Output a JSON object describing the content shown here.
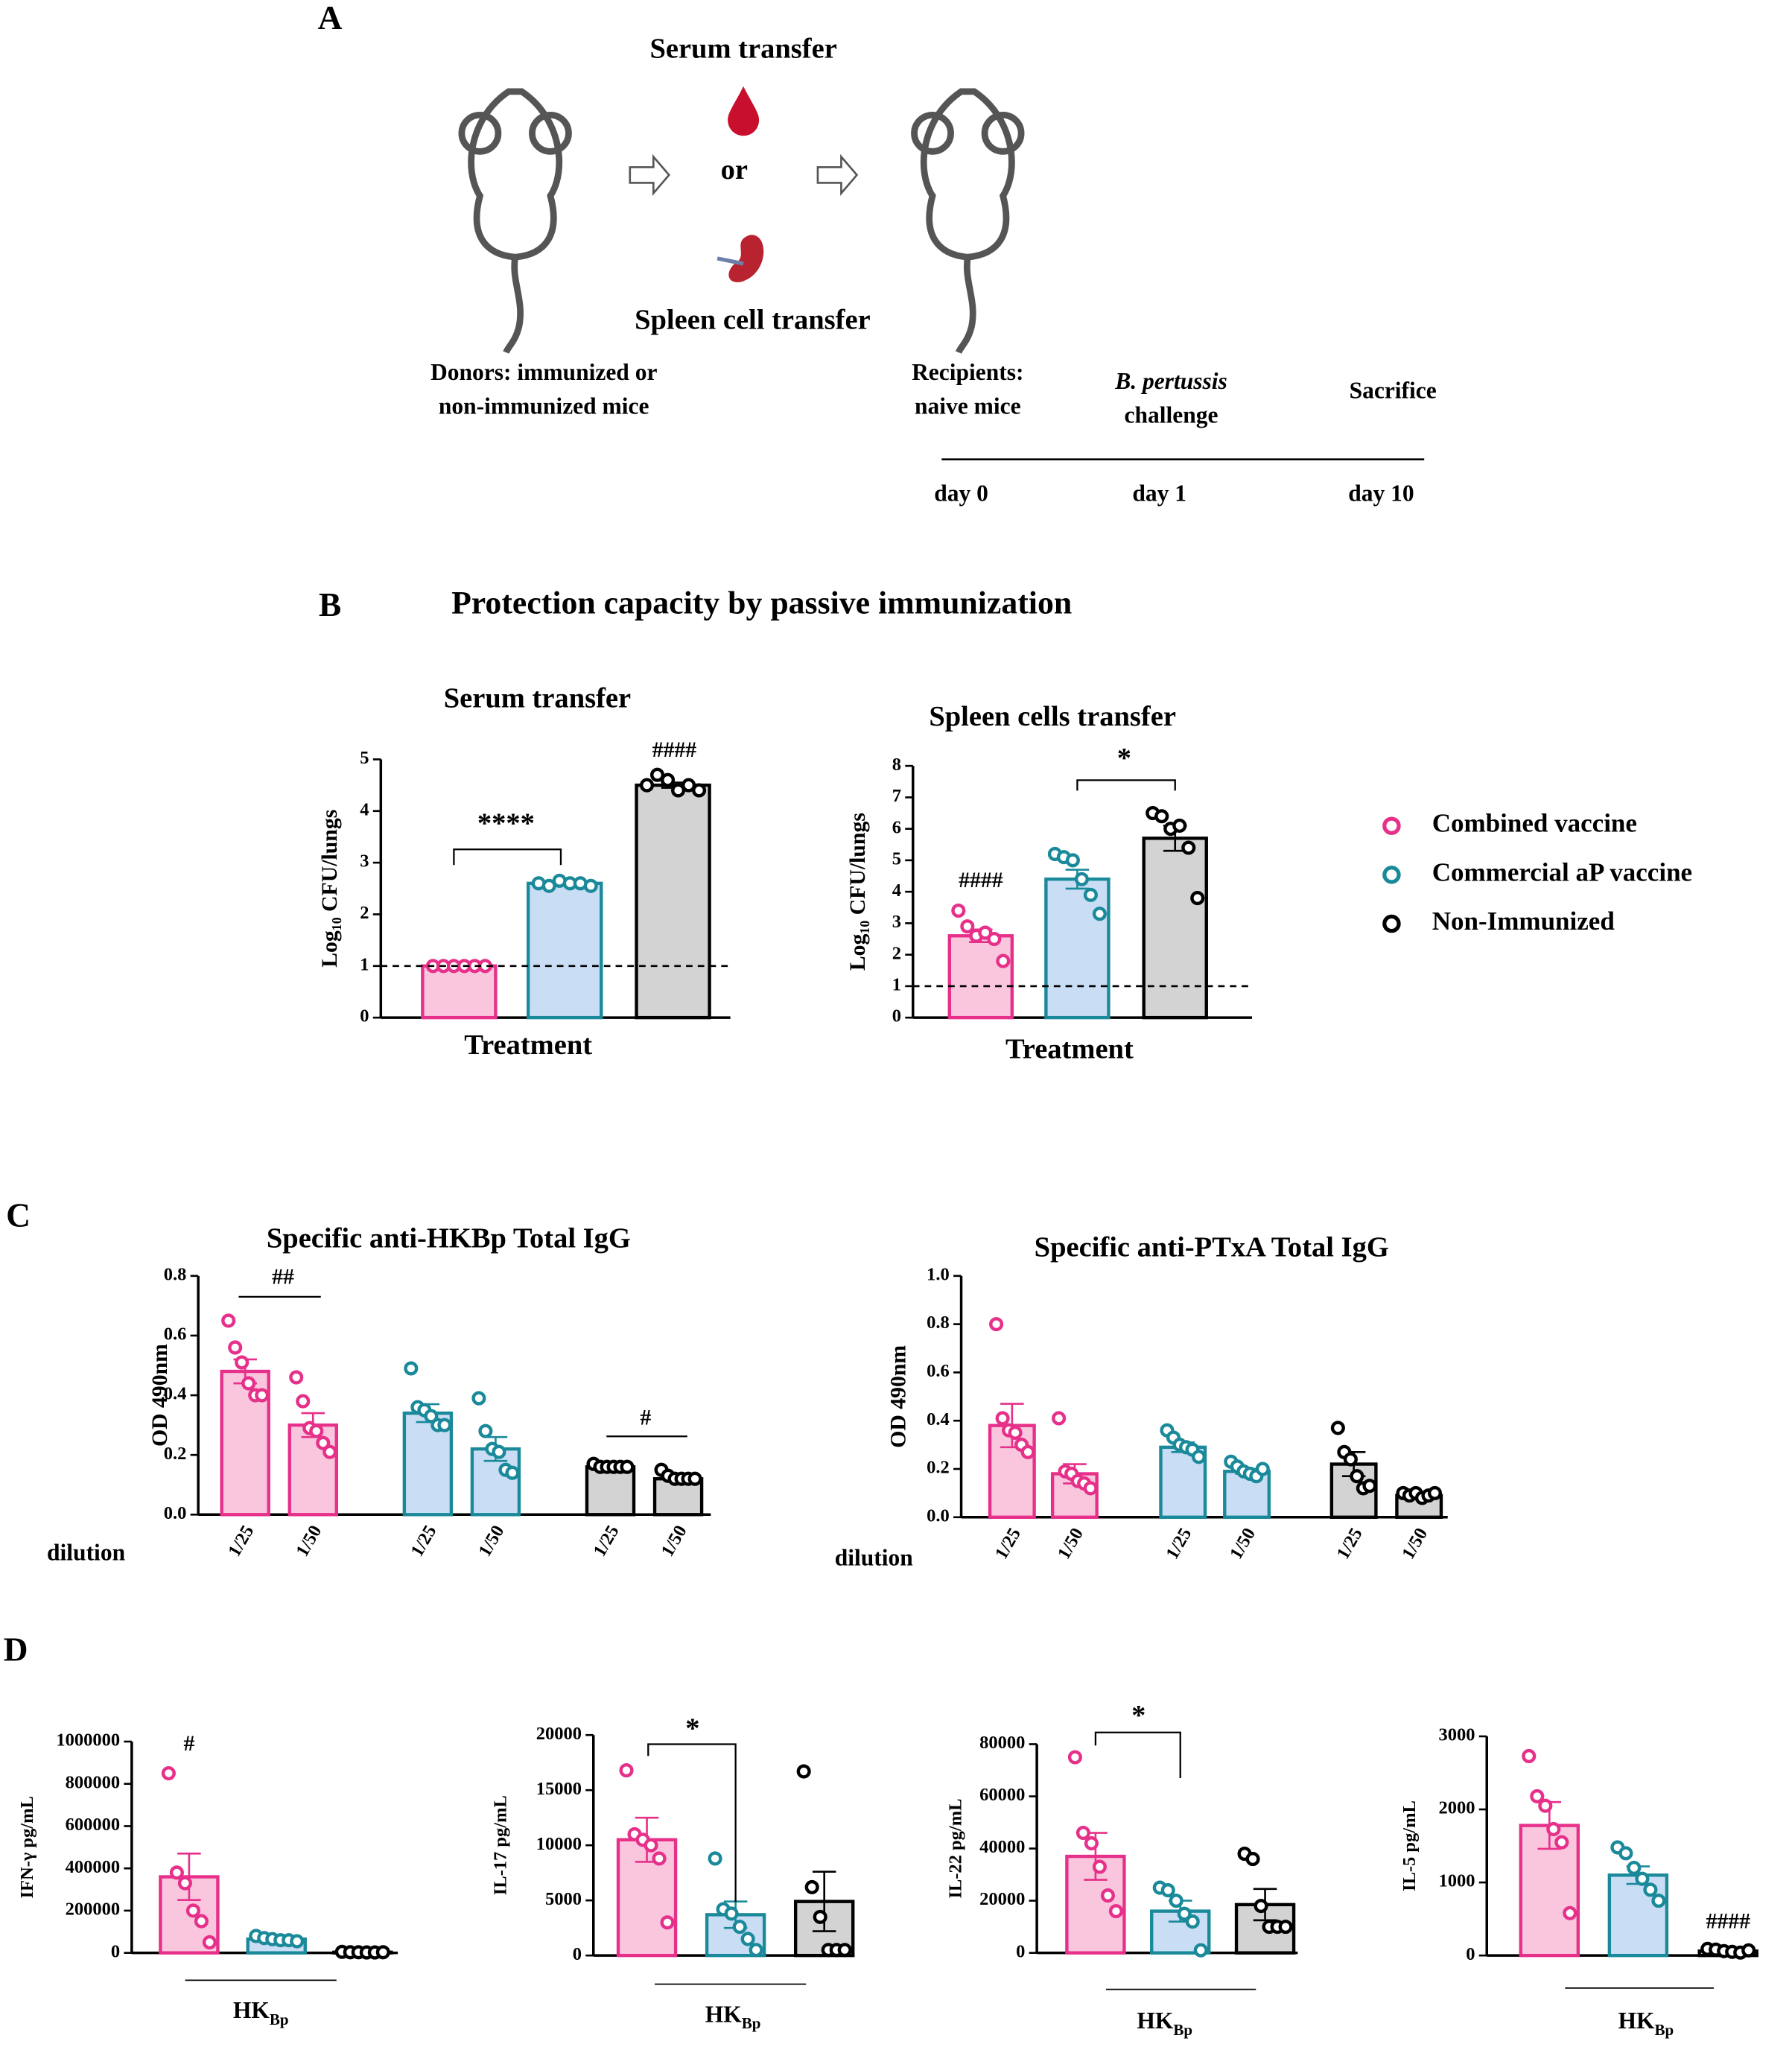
{
  "panel_labels": [
    "A",
    "B",
    "C",
    "D"
  ],
  "panel_a": {
    "serum": "Serum transfer",
    "or": "or",
    "spleen": "Spleen cell transfer",
    "donors1": "Donors: immunized or",
    "donors2": "non-immunized mice",
    "recip1": "Recipients:",
    "recip2": "naive mice",
    "bp": "B. pertussis",
    "challenge": "challenge",
    "sacrifice": "Sacrifice",
    "day0": "day 0",
    "day1": "day 1",
    "day10": "day 10"
  },
  "panel_b_title": "Protection capacity by passive immunization",
  "legend": [
    {
      "name": "Combined vaccine",
      "color": "#e6308a"
    },
    {
      "name": "Commercial aP vaccine",
      "color": "#1a8a9a"
    },
    {
      "name": "Non-Immunized",
      "color": "#000000"
    }
  ],
  "chart_data": [
    {
      "type": "bar",
      "title": "Serum transfer",
      "ylabel": "Log₁₀ CFU/lungs",
      "xlabel": "Treatment",
      "ylim": [
        0,
        5
      ],
      "yticks": [
        0,
        1,
        2,
        3,
        4,
        5
      ],
      "reference_line": 1,
      "values": [
        1,
        2.6,
        4.5
      ],
      "errors": [
        0,
        0.02,
        0.05
      ],
      "points": [
        [
          1,
          1,
          1,
          1,
          1,
          1
        ],
        [
          2.6,
          2.55,
          2.65,
          2.6,
          2.6,
          2.55
        ],
        [
          4.5,
          4.7,
          4.6,
          4.4,
          4.5,
          4.4
        ]
      ],
      "colors": [
        "#e6308a",
        "#1a8a9a",
        "#000000"
      ],
      "fills": [
        "#f9c6de",
        "#c9ddf5",
        "#d3d3d3"
      ],
      "annotations": [
        "****",
        "####"
      ]
    },
    {
      "type": "bar",
      "title": "Spleen cells transfer",
      "ylabel": "Log₁₀ CFU/lungs",
      "xlabel": "Treatment",
      "ylim": [
        0,
        8
      ],
      "yticks": [
        0,
        1,
        2,
        3,
        4,
        5,
        6,
        7,
        8
      ],
      "reference_line": 1,
      "values": [
        2.6,
        4.4,
        5.7
      ],
      "errors": [
        0.2,
        0.3,
        0.4
      ],
      "points": [
        [
          3.4,
          2.9,
          2.6,
          2.7,
          2.5,
          1.8
        ],
        [
          5.2,
          5.1,
          5.0,
          4.4,
          3.9,
          3.3
        ],
        [
          6.5,
          6.4,
          6.0,
          6.1,
          5.4,
          3.8
        ]
      ],
      "colors": [
        "#e6308a",
        "#1a8a9a",
        "#000000"
      ],
      "fills": [
        "#f9c6de",
        "#c9ddf5",
        "#d3d3d3"
      ],
      "annotations": [
        "*",
        "####"
      ]
    },
    {
      "type": "bar",
      "title": "Specific anti-HKBp Total IgG",
      "ylabel": "OD 490nm",
      "xlabel": "dilution",
      "ylim": [
        0,
        0.8
      ],
      "yticks": [
        {
          "value": 0,
          "label": "0.0"
        },
        0.2,
        0.4,
        0.6,
        0.8
      ],
      "categories": [
        "1/25",
        "1/50",
        "1/25",
        "1/50",
        "1/25",
        "1/50"
      ],
      "values": [
        0.48,
        0.3,
        0.34,
        0.22,
        0.16,
        0.12
      ],
      "errors": [
        0.04,
        0.04,
        0.03,
        0.04,
        0.01,
        0.01
      ],
      "points": [
        [
          0.65,
          0.56,
          0.51,
          0.44,
          0.4,
          0.4
        ],
        [
          0.46,
          0.38,
          0.29,
          0.28,
          0.24,
          0.21
        ],
        [
          0.49,
          0.36,
          0.35,
          0.33,
          0.3,
          0.3
        ],
        [
          0.39,
          0.28,
          0.22,
          0.21,
          0.15,
          0.14
        ],
        [
          0.17,
          0.16,
          0.16,
          0.16,
          0.16,
          0.16
        ],
        [
          0.15,
          0.13,
          0.12,
          0.12,
          0.12,
          0.12
        ]
      ],
      "colors": [
        "#e6308a",
        "#e6308a",
        "#1a8a9a",
        "#1a8a9a",
        "#000000",
        "#000000"
      ],
      "fills": [
        "#f9c6de",
        "#f9c6de",
        "#c9ddf5",
        "#c9ddf5",
        "#d3d3d3",
        "#d3d3d3"
      ],
      "annotations": [
        "##",
        "#"
      ]
    },
    {
      "type": "bar",
      "title": "Specific anti-PTxA Total IgG",
      "ylabel": "OD 490nm",
      "xlabel": "dilution",
      "ylim": [
        0,
        1
      ],
      "yticks": [
        {
          "value": 0,
          "label": "0.0"
        },
        0.2,
        0.4,
        0.6,
        0.8,
        {
          "value": 1,
          "label": "1.0"
        }
      ],
      "categories": [
        "1/25",
        "1/50",
        "1/25",
        "1/50",
        "1/25",
        "1/50"
      ],
      "values": [
        0.38,
        0.18,
        0.29,
        0.19,
        0.22,
        0.09
      ],
      "errors": [
        0.09,
        0.04,
        0.02,
        0.01,
        0.05,
        0.01
      ],
      "points": [
        [
          0.8,
          0.41,
          0.36,
          0.35,
          0.3,
          0.27
        ],
        [
          0.41,
          0.19,
          0.18,
          0.15,
          0.14,
          0.12
        ],
        [
          0.36,
          0.33,
          0.3,
          0.29,
          0.28,
          0.25
        ],
        [
          0.23,
          0.21,
          0.19,
          0.18,
          0.17,
          0.2
        ],
        [
          0.37,
          0.27,
          0.24,
          0.17,
          0.12,
          0.13
        ],
        [
          0.1,
          0.09,
          0.1,
          0.08,
          0.09,
          0.1
        ]
      ],
      "colors": [
        "#e6308a",
        "#e6308a",
        "#1a8a9a",
        "#1a8a9a",
        "#000000",
        "#000000"
      ],
      "fills": [
        "#f9c6de",
        "#f9c6de",
        "#c9ddf5",
        "#c9ddf5",
        "#d3d3d3",
        "#d3d3d3"
      ],
      "annotations": []
    },
    {
      "type": "bar",
      "ylabel": "IFN-γ pg/mL",
      "xlabel": "HK",
      "xlabel_sub": "Bp",
      "ylim": [
        0,
        1000000
      ],
      "yticks": [
        0,
        200000,
        400000,
        600000,
        800000,
        1000000
      ],
      "values": [
        360000,
        65000,
        3000
      ],
      "errors": [
        110000,
        5000,
        500
      ],
      "points": [
        [
          850000,
          380000,
          330000,
          200000,
          150000,
          50000
        ],
        [
          80000,
          70000,
          65000,
          60000,
          60000,
          55000
        ],
        [
          5000,
          3000,
          3000,
          2000,
          2000,
          3000
        ]
      ],
      "colors": [
        "#e6308a",
        "#1a8a9a",
        "#000000"
      ],
      "fills": [
        "#f9c6de",
        "#c9ddf5",
        "#d3d3d3"
      ],
      "annotations": [
        "#"
      ]
    },
    {
      "type": "bar",
      "ylabel": "IL-17 pg/mL",
      "xlabel": "HK",
      "xlabel_sub": "Bp",
      "ylim": [
        0,
        20000
      ],
      "yticks": [
        0,
        5000,
        10000,
        15000,
        20000
      ],
      "values": [
        10500,
        3700,
        4900
      ],
      "errors": [
        2000,
        1200,
        2700
      ],
      "points": [
        [
          16800,
          11000,
          10500,
          10000,
          8800,
          3000
        ],
        [
          8800,
          4200,
          3800,
          2600,
          1500,
          500
        ],
        [
          16700,
          6200,
          3500,
          500,
          500,
          500
        ]
      ],
      "colors": [
        "#e6308a",
        "#1a8a9a",
        "#000000"
      ],
      "fills": [
        "#f9c6de",
        "#c9ddf5",
        "#d3d3d3"
      ],
      "annotations": [
        "*"
      ]
    },
    {
      "type": "bar",
      "ylabel": "IL-22 pg/mL",
      "xlabel": "HK",
      "xlabel_sub": "Bp",
      "ylim": [
        0,
        80000
      ],
      "yticks": [
        0,
        20000,
        40000,
        60000,
        80000
      ],
      "values": [
        37000,
        16000,
        18500
      ],
      "errors": [
        9000,
        4000,
        6000
      ],
      "points": [
        [
          75000,
          46000,
          42000,
          33000,
          22000,
          16000
        ],
        [
          25000,
          24000,
          20000,
          15000,
          12000,
          1000
        ],
        [
          38000,
          36000,
          18000,
          10000,
          10000,
          10000
        ]
      ],
      "colors": [
        "#e6308a",
        "#1a8a9a",
        "#000000"
      ],
      "fills": [
        "#f9c6de",
        "#c9ddf5",
        "#d3d3d3"
      ],
      "annotations": [
        "*"
      ]
    },
    {
      "type": "bar",
      "ylabel": "IL-5 pg/mL",
      "xlabel": "HK",
      "xlabel_sub": "Bp",
      "ylim": [
        0,
        3000
      ],
      "yticks": [
        0,
        1000,
        2000,
        3000
      ],
      "values": [
        1780,
        1100,
        60
      ],
      "errors": [
        320,
        120,
        10
      ],
      "points": [
        [
          2730,
          2180,
          2050,
          1730,
          1550,
          580
        ],
        [
          1480,
          1400,
          1200,
          1050,
          900,
          750
        ],
        [
          90,
          80,
          60,
          50,
          40,
          70
        ]
      ],
      "colors": [
        "#e6308a",
        "#1a8a9a",
        "#000000"
      ],
      "fills": [
        "#f9c6de",
        "#c9ddf5",
        "#d3d3d3"
      ],
      "annotations": [
        "####"
      ]
    }
  ]
}
